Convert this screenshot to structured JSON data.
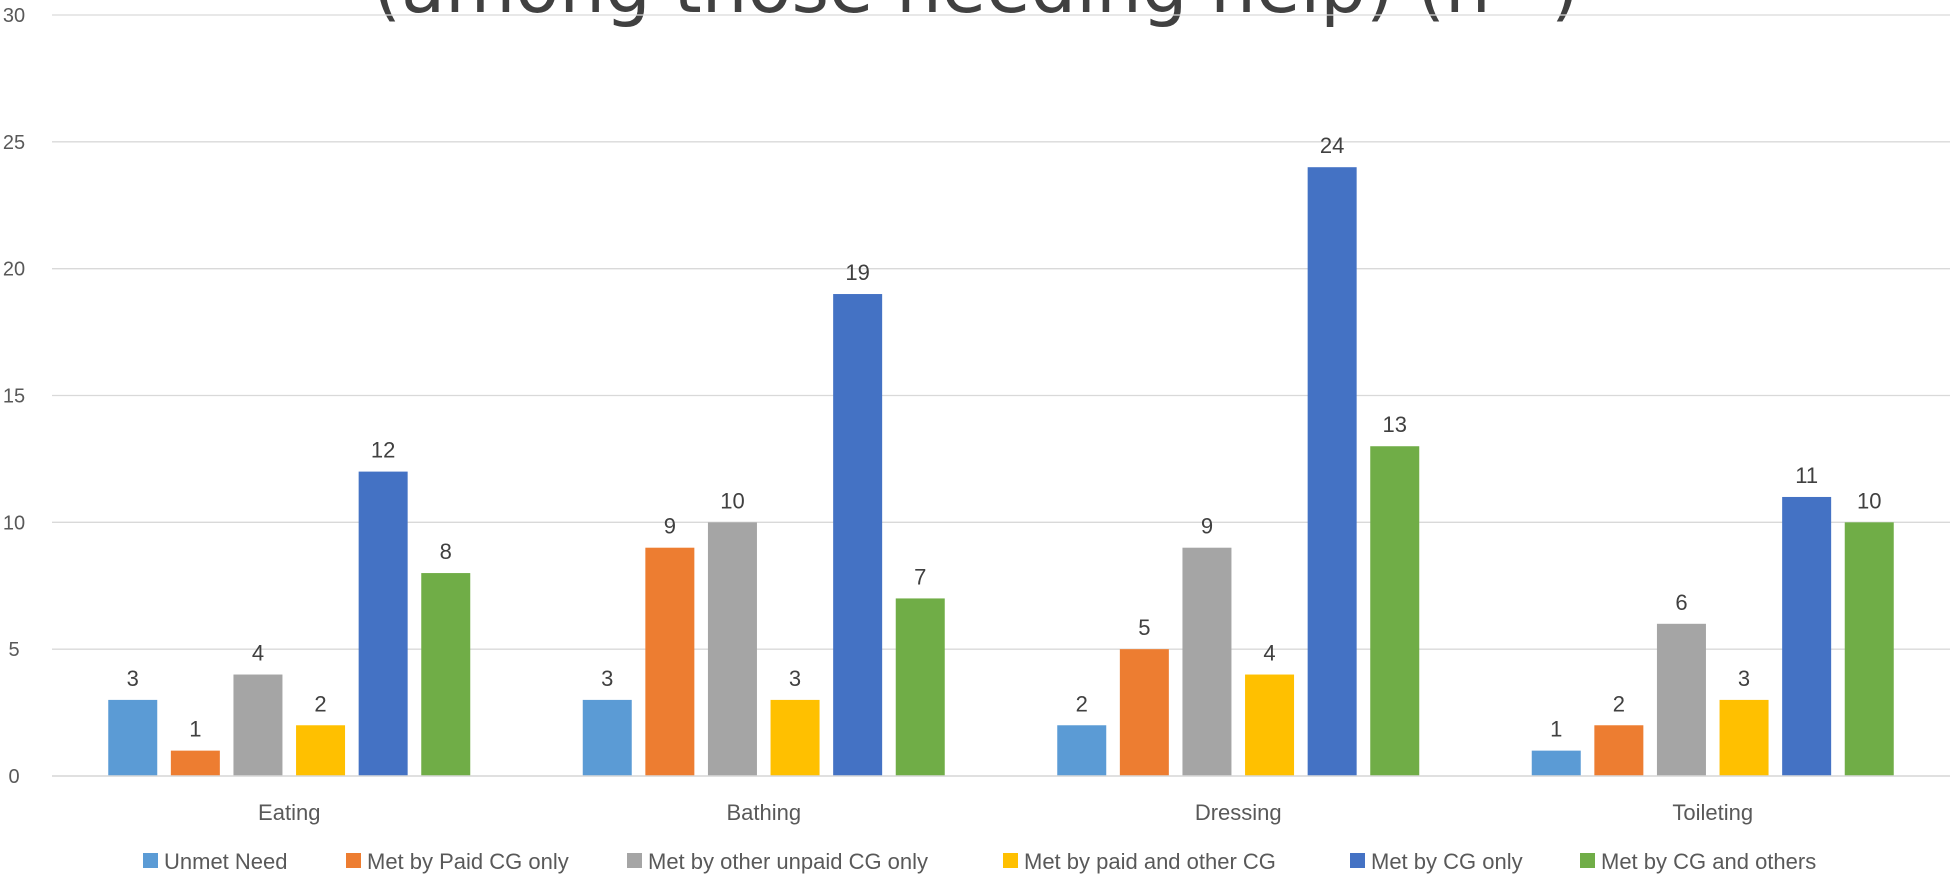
{
  "chart_data": {
    "type": "bar",
    "title": "(among those needing help) (n=)",
    "categories": [
      "Eating",
      "Bathing",
      "Dressing",
      "Toileting"
    ],
    "series": [
      {
        "name": "Unmet Need",
        "color": "#5b9bd5",
        "values": [
          3,
          3,
          2,
          1
        ]
      },
      {
        "name": "Met by Paid CG only",
        "color": "#ed7d31",
        "values": [
          1,
          9,
          5,
          2
        ]
      },
      {
        "name": "Met by other unpaid CG only",
        "color": "#a5a5a5",
        "values": [
          4,
          10,
          9,
          6
        ]
      },
      {
        "name": "Met by paid and other CG",
        "color": "#ffc000",
        "values": [
          2,
          3,
          4,
          3
        ]
      },
      {
        "name": "Met by CG only",
        "color": "#4472c4",
        "values": [
          12,
          19,
          24,
          11
        ]
      },
      {
        "name": "Met by CG and others",
        "color": "#70ad47",
        "values": [
          8,
          7,
          13,
          10
        ]
      }
    ],
    "xlabel": "",
    "ylabel": "",
    "ylim": [
      0,
      30
    ],
    "yticks": [
      0,
      5,
      10,
      15,
      20,
      25,
      30
    ],
    "grid": true,
    "legend": "bottom"
  }
}
